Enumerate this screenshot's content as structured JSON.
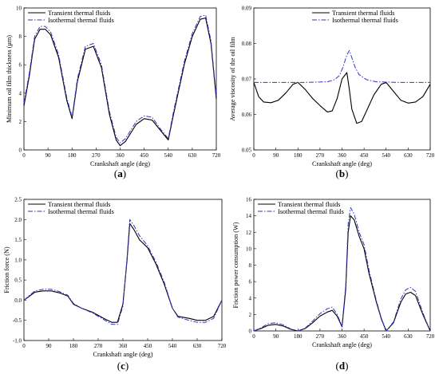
{
  "chart_data": [
    {
      "type": "line",
      "panel_label": "a",
      "xlabel": "Crankshaft angle (deg)",
      "ylabel": "Minimum oil film thickness (μm)",
      "xlim": [
        0,
        720
      ],
      "ylim": [
        0,
        10
      ],
      "xticks": [
        "0",
        "90",
        "180",
        "270",
        "360",
        "450",
        "540",
        "630",
        "720"
      ],
      "yticks": [
        "0",
        "2",
        "4",
        "6",
        "8",
        "10"
      ],
      "legend_position": "top-left",
      "series": [
        {
          "name": "Transient thermal fluids",
          "color": "#000000",
          "dash": "solid",
          "x": [
            0,
            20,
            40,
            60,
            80,
            100,
            130,
            160,
            180,
            200,
            230,
            260,
            290,
            320,
            345,
            360,
            380,
            420,
            450,
            480,
            510,
            540,
            560,
            600,
            630,
            660,
            680,
            700,
            720
          ],
          "y": [
            3.1,
            5.2,
            7.8,
            8.5,
            8.5,
            8.1,
            6.5,
            3.5,
            2.2,
            4.8,
            7.1,
            7.3,
            5.8,
            2.5,
            0.7,
            0.3,
            0.6,
            1.8,
            2.2,
            2.1,
            1.4,
            0.7,
            2.5,
            6.0,
            8.0,
            9.2,
            9.3,
            7.5,
            3.6
          ]
        },
        {
          "name": "Isothermal thermal fluids",
          "color": "#3333cc",
          "dash": "dashdot",
          "x": [
            0,
            20,
            40,
            60,
            80,
            100,
            130,
            160,
            180,
            200,
            230,
            260,
            290,
            320,
            345,
            360,
            380,
            420,
            450,
            480,
            510,
            540,
            560,
            600,
            630,
            660,
            680,
            700,
            720
          ],
          "y": [
            3.3,
            5.4,
            8.0,
            8.7,
            8.7,
            8.3,
            6.7,
            3.7,
            2.3,
            5.0,
            7.3,
            7.5,
            6.0,
            2.7,
            0.9,
            0.5,
            0.8,
            2.0,
            2.4,
            2.3,
            1.5,
            0.8,
            2.7,
            6.2,
            8.2,
            9.4,
            9.5,
            7.7,
            3.8
          ]
        }
      ]
    },
    {
      "type": "line",
      "panel_label": "b",
      "xlabel": "Crankshaft angle (deg)",
      "ylabel": "Average viscosity of the oil film",
      "xlim": [
        0,
        720
      ],
      "ylim": [
        0.05,
        0.09
      ],
      "xticks": [
        "0",
        "90",
        "180",
        "270",
        "360",
        "450",
        "540",
        "630",
        "720"
      ],
      "yticks": [
        "0.05",
        "0.06",
        "0.07",
        "0.08",
        "0.09"
      ],
      "legend_position": "top-right",
      "series": [
        {
          "name": "Transient thermal fluids",
          "color": "#000000",
          "dash": "solid",
          "x": [
            0,
            20,
            40,
            70,
            100,
            130,
            160,
            180,
            210,
            240,
            270,
            300,
            320,
            340,
            360,
            380,
            390,
            400,
            420,
            440,
            460,
            490,
            520,
            540,
            570,
            600,
            630,
            660,
            690,
            720
          ],
          "y": [
            0.069,
            0.065,
            0.0635,
            0.0633,
            0.064,
            0.066,
            0.0685,
            0.069,
            0.067,
            0.0645,
            0.0625,
            0.0607,
            0.061,
            0.0645,
            0.07,
            0.0718,
            0.067,
            0.0615,
            0.0575,
            0.058,
            0.061,
            0.0655,
            0.0685,
            0.069,
            0.0665,
            0.064,
            0.0632,
            0.0635,
            0.065,
            0.0685
          ]
        },
        {
          "name": "Isothermal thermal fluids",
          "color": "#3333cc",
          "dash": "dashdot",
          "x": [
            0,
            100,
            200,
            300,
            330,
            350,
            365,
            380,
            390,
            400,
            415,
            430,
            460,
            500,
            600,
            720
          ],
          "y": [
            0.069,
            0.069,
            0.069,
            0.0692,
            0.0698,
            0.071,
            0.0735,
            0.0768,
            0.078,
            0.076,
            0.073,
            0.0712,
            0.0698,
            0.0692,
            0.069,
            0.069
          ]
        }
      ]
    },
    {
      "type": "line",
      "panel_label": "c",
      "xlabel": "Crankshaft angle (deg)",
      "ylabel": "Friction force (N)",
      "xlim": [
        0,
        720
      ],
      "ylim": [
        -1.0,
        2.5
      ],
      "xticks": [
        "0",
        "90",
        "180",
        "270",
        "360",
        "450",
        "540",
        "630",
        "720"
      ],
      "yticks": [
        "-1.0",
        "-0.5",
        "0.0",
        "0.5",
        "1.0",
        "1.5",
        "2.0",
        "2.5"
      ],
      "legend_position": "top-left",
      "series": [
        {
          "name": "Transient thermal fluids",
          "color": "#000000",
          "dash": "solid",
          "x": [
            0,
            20,
            40,
            70,
            100,
            130,
            160,
            180,
            210,
            250,
            290,
            320,
            340,
            360,
            375,
            385,
            400,
            420,
            450,
            480,
            510,
            540,
            560,
            600,
            630,
            660,
            690,
            720
          ],
          "y": [
            0.0,
            0.1,
            0.2,
            0.23,
            0.23,
            0.18,
            0.1,
            -0.1,
            -0.2,
            -0.3,
            -0.45,
            -0.55,
            -0.55,
            -0.1,
            1.0,
            1.9,
            1.75,
            1.5,
            1.3,
            0.9,
            0.4,
            -0.2,
            -0.4,
            -0.45,
            -0.5,
            -0.5,
            -0.4,
            0.0
          ]
        },
        {
          "name": "Isothermal thermal fluids",
          "color": "#3333cc",
          "dash": "dashdot",
          "x": [
            0,
            20,
            40,
            70,
            100,
            130,
            160,
            180,
            210,
            250,
            290,
            320,
            340,
            360,
            375,
            385,
            400,
            420,
            450,
            480,
            510,
            540,
            560,
            600,
            630,
            660,
            690,
            720
          ],
          "y": [
            0.0,
            0.12,
            0.23,
            0.27,
            0.27,
            0.21,
            0.12,
            -0.08,
            -0.2,
            -0.32,
            -0.48,
            -0.6,
            -0.6,
            -0.15,
            1.05,
            2.0,
            1.85,
            1.6,
            1.35,
            0.95,
            0.45,
            -0.2,
            -0.42,
            -0.5,
            -0.55,
            -0.55,
            -0.45,
            0.0
          ]
        }
      ]
    },
    {
      "type": "line",
      "panel_label": "d",
      "xlabel": "Crankshaft angle (deg)",
      "ylabel": "Friction power consumption (W)",
      "xlim": [
        0,
        720
      ],
      "ylim": [
        0,
        16
      ],
      "xticks": [
        "0",
        "90",
        "180",
        "270",
        "360",
        "450",
        "540",
        "630",
        "720"
      ],
      "yticks": [
        "0",
        "2",
        "4",
        "6",
        "8",
        "10",
        "12",
        "14",
        "16"
      ],
      "legend_position": "top-left",
      "series": [
        {
          "name": "Transient thermal fluids",
          "color": "#000000",
          "dash": "solid",
          "x": [
            0,
            30,
            60,
            90,
            120,
            150,
            180,
            210,
            240,
            270,
            300,
            320,
            340,
            360,
            375,
            385,
            395,
            410,
            430,
            450,
            470,
            500,
            520,
            540,
            570,
            600,
            620,
            640,
            660,
            690,
            720
          ],
          "y": [
            0.0,
            0.3,
            0.7,
            0.8,
            0.6,
            0.2,
            0.0,
            0.3,
            1.0,
            1.8,
            2.3,
            2.5,
            1.8,
            0.5,
            5.0,
            12.0,
            14.0,
            13.5,
            11.5,
            10.0,
            7.0,
            3.5,
            1.5,
            0.0,
            1.0,
            3.5,
            4.5,
            4.7,
            4.3,
            2.0,
            0.0
          ]
        },
        {
          "name": "Isothermal thermal fluids",
          "color": "#3333cc",
          "dash": "dashdot",
          "x": [
            0,
            30,
            60,
            90,
            120,
            150,
            180,
            210,
            240,
            270,
            300,
            320,
            340,
            360,
            375,
            385,
            395,
            410,
            430,
            450,
            470,
            500,
            520,
            540,
            570,
            600,
            620,
            640,
            660,
            690,
            720
          ],
          "y": [
            0.0,
            0.4,
            0.9,
            1.0,
            0.75,
            0.25,
            0.0,
            0.35,
            1.2,
            2.1,
            2.7,
            2.9,
            2.0,
            0.6,
            5.5,
            13.0,
            15.0,
            14.2,
            12.0,
            10.5,
            7.4,
            3.7,
            1.6,
            0.0,
            1.1,
            3.9,
            5.0,
            5.3,
            4.8,
            2.2,
            0.0
          ]
        }
      ]
    }
  ]
}
